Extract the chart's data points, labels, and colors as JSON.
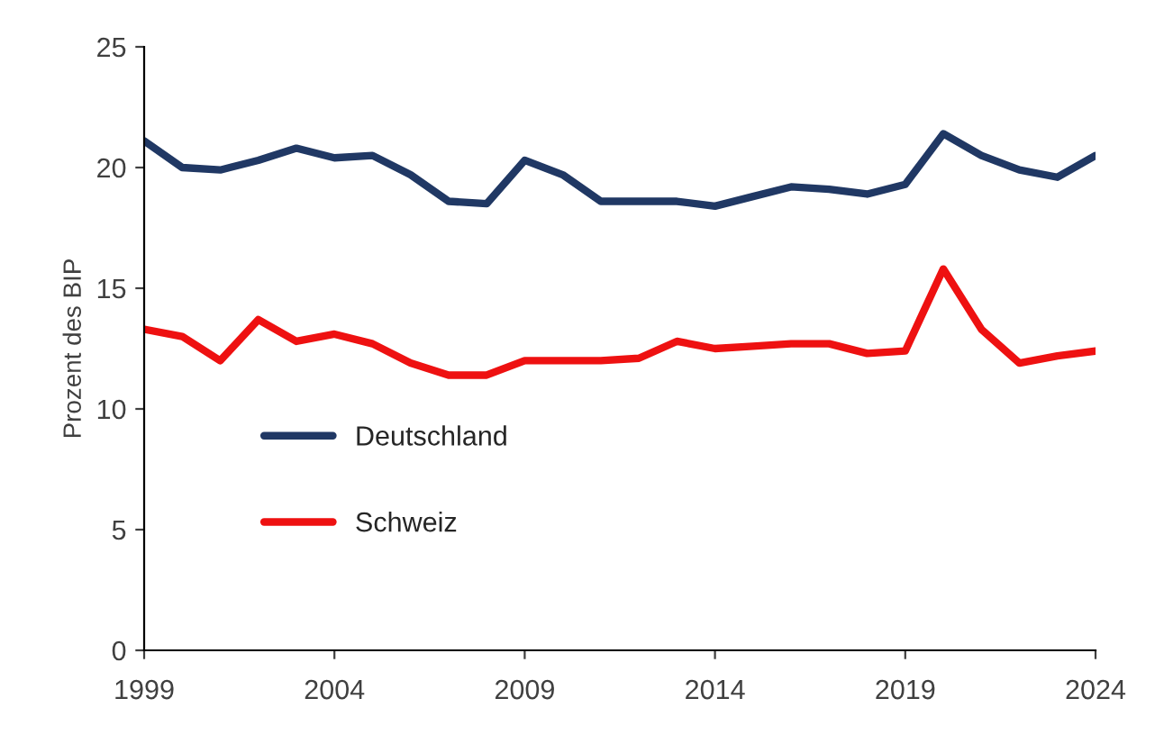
{
  "chart_data": {
    "type": "line",
    "ylabel": "Prozent des BIP",
    "x": [
      1999,
      2000,
      2001,
      2002,
      2003,
      2004,
      2005,
      2006,
      2007,
      2008,
      2009,
      2010,
      2011,
      2012,
      2013,
      2014,
      2015,
      2016,
      2017,
      2018,
      2019,
      2020,
      2021,
      2022,
      2023,
      2024
    ],
    "series": [
      {
        "name": "Deutschland",
        "color": "#203864",
        "values": [
          21.1,
          20.0,
          19.9,
          20.3,
          20.8,
          20.4,
          20.5,
          19.7,
          18.6,
          18.5,
          20.3,
          19.7,
          18.6,
          18.6,
          18.6,
          18.4,
          18.8,
          19.2,
          19.1,
          18.9,
          19.3,
          21.4,
          20.5,
          19.9,
          19.6,
          20.5
        ]
      },
      {
        "name": "Schweiz",
        "color": "#ee1111",
        "values": [
          13.3,
          13.0,
          12.0,
          13.7,
          12.8,
          13.1,
          12.7,
          11.9,
          11.4,
          11.4,
          12.0,
          12.0,
          12.0,
          12.1,
          12.8,
          12.5,
          12.6,
          12.7,
          12.7,
          12.3,
          12.4,
          15.8,
          13.3,
          11.9,
          12.2,
          12.4
        ]
      }
    ],
    "xlim": [
      1999,
      2024
    ],
    "xticks": [
      1999,
      2004,
      2009,
      2014,
      2019,
      2024
    ],
    "ylim": [
      0,
      25
    ],
    "yticks": [
      0,
      5,
      10,
      15,
      20,
      25
    ],
    "grid": false,
    "legend": "left",
    "marker": "none",
    "line_style": "solid"
  }
}
